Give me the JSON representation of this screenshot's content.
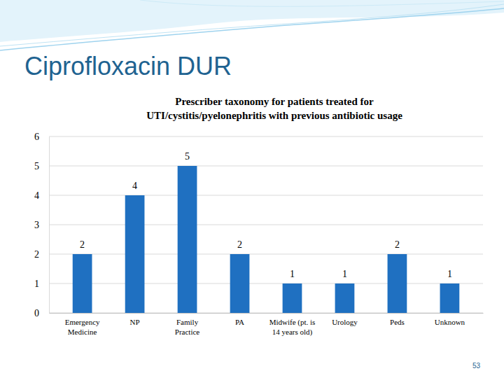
{
  "slide": {
    "title": "Ciprofloxacin DUR"
  },
  "footer": {
    "page": "53"
  },
  "chart_data": {
    "type": "bar",
    "title": "Prescriber taxonomy for patients treated for\nUTI/cystitis/pyelonephritis with previous antibiotic usage",
    "categories": [
      "Emergency Medicine",
      "NP",
      "Family Practice",
      "PA",
      "Midwife (pt. is 14 years old)",
      "Urology",
      "Peds",
      "Unknown"
    ],
    "values": [
      2,
      4,
      5,
      2,
      1,
      1,
      2,
      1
    ],
    "color": "#1f70c1",
    "ylim": [
      0,
      6
    ],
    "yticks": [
      0,
      1,
      2,
      3,
      4,
      5,
      6
    ],
    "grid": true,
    "data_labels": true
  }
}
